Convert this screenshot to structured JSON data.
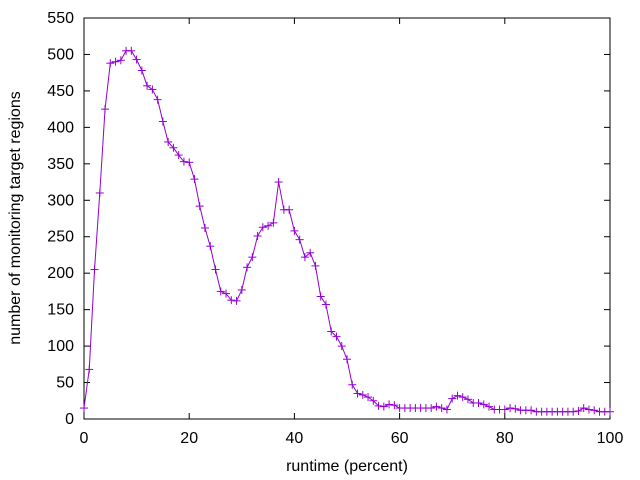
{
  "chart_data": {
    "type": "line",
    "title": "",
    "xlabel": "runtime (percent)",
    "ylabel": "number of monitoring target regions",
    "xlim": [
      0,
      100
    ],
    "ylim": [
      0,
      550
    ],
    "xticks": [
      "0",
      "20",
      "40",
      "60",
      "80",
      "100"
    ],
    "yticks": [
      "0",
      "50",
      "100",
      "150",
      "200",
      "250",
      "300",
      "350",
      "400",
      "450",
      "500",
      "550"
    ],
    "grid": false,
    "legend": "none",
    "marker": "plus",
    "line_color": "#9400d3",
    "series": [
      {
        "x": [
          0,
          1,
          2,
          3,
          4,
          5,
          6,
          7,
          8,
          9,
          10,
          11,
          12,
          13,
          14,
          15,
          16,
          17,
          18,
          19,
          20,
          21,
          22,
          23,
          24,
          25,
          26,
          27,
          28,
          29,
          30,
          31,
          32,
          33,
          34,
          35,
          36,
          37,
          38,
          39,
          40,
          41,
          42,
          43,
          44,
          45,
          46,
          47,
          48,
          49,
          50,
          51,
          52,
          53,
          54,
          55,
          56,
          57,
          58,
          59,
          60,
          61,
          62,
          63,
          64,
          65,
          66,
          67,
          68,
          69,
          70,
          71,
          72,
          73,
          74,
          75,
          76,
          77,
          78,
          79,
          80,
          81,
          82,
          83,
          84,
          85,
          86,
          87,
          88,
          89,
          90,
          91,
          92,
          93,
          94,
          95,
          96,
          97,
          98,
          99,
          100
        ],
        "values": [
          15,
          68,
          205,
          310,
          425,
          488,
          490,
          492,
          505,
          505,
          493,
          478,
          457,
          452,
          438,
          408,
          380,
          372,
          362,
          353,
          352,
          329,
          292,
          262,
          237,
          205,
          175,
          172,
          163,
          162,
          177,
          208,
          222,
          251,
          263,
          265,
          269,
          325,
          287,
          287,
          258,
          246,
          222,
          228,
          210,
          168,
          157,
          120,
          113,
          100,
          82,
          47,
          35,
          33,
          30,
          25,
          18,
          17,
          20,
          19,
          15,
          15,
          15,
          15,
          15,
          15,
          15,
          17,
          15,
          13,
          28,
          32,
          30,
          27,
          22,
          22,
          20,
          17,
          13,
          13,
          13,
          15,
          14,
          12,
          12,
          12,
          10,
          10,
          10,
          10,
          10,
          10,
          10,
          10,
          11,
          15,
          13,
          12,
          10,
          10,
          10
        ]
      }
    ]
  }
}
